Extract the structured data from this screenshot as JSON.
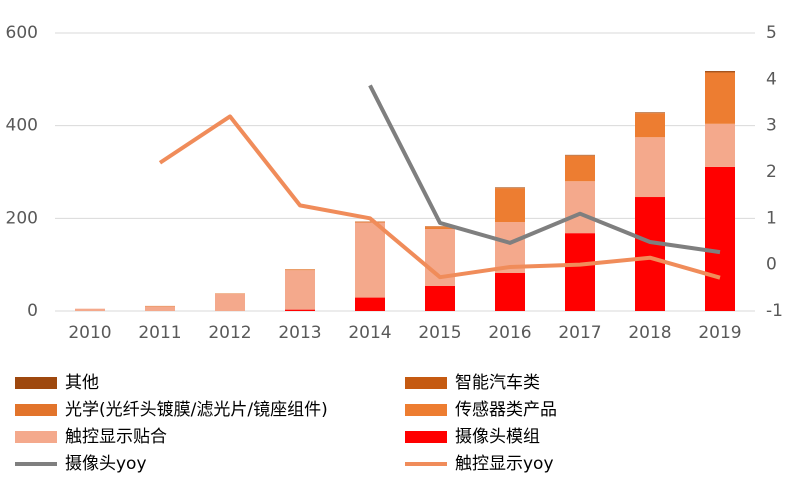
{
  "chart_data": {
    "type": "bar",
    "stacked": true,
    "categories": [
      "2010",
      "2011",
      "2012",
      "2013",
      "2014",
      "2015",
      "2016",
      "2017",
      "2018",
      "2019"
    ],
    "ylim": [
      0,
      600
    ],
    "yticks": [
      0,
      200,
      400,
      600
    ],
    "y2lim": [
      -1,
      5
    ],
    "y2ticks": [
      -1,
      0,
      1,
      2,
      3,
      4,
      5
    ],
    "grid": true,
    "series": [
      {
        "name": "其他",
        "type": "bar",
        "color": "#9e480e",
        "values": [
          0,
          0,
          0,
          0,
          0,
          0,
          1,
          1,
          1,
          2
        ]
      },
      {
        "name": "智能汽车类",
        "type": "bar",
        "color": "#c55a11",
        "values": [
          0,
          0,
          0,
          0,
          1,
          1,
          1,
          1,
          1,
          2
        ]
      },
      {
        "name": "光学(光纤头镀膜/滤光片/镜座组件)",
        "type": "bar",
        "color": "#e2742b",
        "values": [
          0,
          1,
          1,
          2,
          1,
          2,
          0,
          0,
          0,
          0
        ]
      },
      {
        "name": "传感器类产品",
        "type": "bar",
        "color": "#ed7d31",
        "values": [
          0,
          0,
          0,
          0,
          0,
          3,
          73,
          55,
          52,
          110
        ]
      },
      {
        "name": "触控显示贴合",
        "type": "bar",
        "color": "#f4a98c",
        "values": [
          5,
          10,
          37,
          85,
          162,
          123,
          110,
          112,
          129,
          93
        ]
      },
      {
        "name": "摄像头模组",
        "type": "bar",
        "color": "#ff0000",
        "values": [
          0,
          0,
          0,
          3,
          29,
          54,
          82,
          168,
          246,
          311
        ]
      },
      {
        "name": "摄像头yoy",
        "type": "line",
        "axis": "y2",
        "color": "#7f7f7f",
        "values": [
          null,
          null,
          null,
          null,
          3.87,
          0.9,
          0.47,
          1.1,
          0.49,
          0.27
        ]
      },
      {
        "name": "触控显示yoy",
        "type": "line",
        "axis": "y2",
        "color": "#f08c5a",
        "values": [
          null,
          2.2,
          3.2,
          1.28,
          1.0,
          -0.27,
          -0.05,
          0.0,
          0.15,
          -0.28
        ]
      }
    ]
  }
}
